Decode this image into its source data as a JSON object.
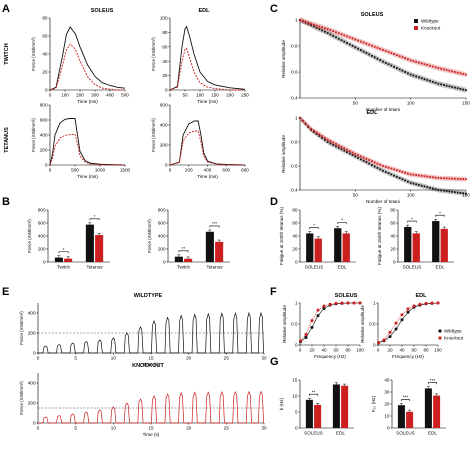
{
  "panel_letters": [
    "A",
    "B",
    "C",
    "D",
    "E",
    "F",
    "G"
  ],
  "colors": {
    "wildtype": "#111111",
    "knockout": "#cc1f1f",
    "threshold": "#888888"
  },
  "legend": {
    "wildtype": "Wildtype",
    "knockout": "Knockout"
  },
  "labels": {
    "soleus": "SOLEUS",
    "edl": "EDL",
    "twitch": "TWITCH",
    "tetanus": "TETANUS",
    "wildtype_caps": "WILDTYPE",
    "knockout_caps": "KNOCKOUT",
    "force_mn_mm2": "Force (mN/mm²)",
    "time_ms": "Time (ms)",
    "time_s": "Time (s)",
    "relative_amplitude": "Relative amplitude",
    "number_of_tetani": "Number of tetani",
    "frequency_hz": "Frequency (Hz)",
    "fatigue_100": "Fatigue at 100th tetanus (%)",
    "fatigue_150": "Fatigue at 150th tetanus (%)",
    "k_hz": "k (Hz)",
    "f50_hz": "F₅₀ (Hz)"
  },
  "chart_data": [
    {
      "id": "A-soleus-twitch",
      "type": "line",
      "ylabel": "Force (mN/mm²)",
      "xlabel": "Time (ms)",
      "xlim": [
        0,
        500
      ],
      "ylim": [
        0,
        80
      ],
      "xticks": [
        0,
        100,
        200,
        300,
        400,
        500
      ],
      "yticks": [
        0,
        20,
        40,
        60,
        80
      ],
      "series": [
        {
          "name": "Wildtype",
          "x": [
            0,
            40,
            80,
            110,
            135,
            170,
            200,
            250,
            300,
            350,
            400,
            450,
            500
          ],
          "y": [
            0,
            3,
            35,
            62,
            70,
            62,
            48,
            28,
            15,
            8,
            5,
            3,
            2
          ]
        },
        {
          "name": "Knockout",
          "x": [
            0,
            40,
            80,
            110,
            135,
            170,
            200,
            250,
            300,
            350,
            400,
            450,
            500
          ],
          "y": [
            0,
            2,
            25,
            45,
            51,
            45,
            32,
            15,
            6,
            2,
            1,
            0,
            0
          ]
        }
      ]
    },
    {
      "id": "A-edl-twitch",
      "type": "line",
      "ylabel": "Force (mN/mm²)",
      "xlabel": "Time (ms)",
      "xlim": [
        0,
        250
      ],
      "ylim": [
        0,
        100
      ],
      "xticks": [
        0,
        50,
        100,
        150,
        200,
        250
      ],
      "yticks": [
        0,
        20,
        40,
        60,
        80,
        100
      ],
      "series": [
        {
          "name": "Wildtype",
          "x": [
            0,
            25,
            40,
            50,
            55,
            65,
            80,
            100,
            125,
            150,
            200,
            250
          ],
          "y": [
            0,
            5,
            60,
            85,
            88,
            75,
            50,
            25,
            12,
            7,
            3,
            1
          ]
        },
        {
          "name": "Knockout",
          "x": [
            0,
            25,
            40,
            50,
            55,
            65,
            80,
            100,
            125,
            150,
            200,
            250
          ],
          "y": [
            0,
            4,
            40,
            56,
            58,
            45,
            25,
            10,
            4,
            2,
            0,
            0
          ]
        }
      ]
    },
    {
      "id": "A-soleus-tetanus",
      "type": "line",
      "ylabel": "Force (mN/mm²)",
      "xlabel": "Time (ms)",
      "xlim": [
        0,
        1500
      ],
      "ylim": [
        0,
        800
      ],
      "xticks": [
        0,
        500,
        1000,
        1500
      ],
      "yticks": [
        0,
        200,
        400,
        600,
        800
      ],
      "series": [
        {
          "name": "Wildtype",
          "x": [
            0,
            50,
            100,
            200,
            300,
            400,
            500,
            550,
            600,
            700,
            800,
            1000,
            1200,
            1500
          ],
          "y": [
            0,
            150,
            400,
            560,
            610,
            620,
            620,
            400,
            180,
            60,
            25,
            10,
            5,
            0
          ]
        },
        {
          "name": "Knockout",
          "x": [
            0,
            50,
            100,
            200,
            300,
            400,
            500,
            550,
            600,
            700,
            800,
            1000,
            1200,
            1500
          ],
          "y": [
            0,
            100,
            250,
            360,
            395,
            405,
            410,
            280,
            120,
            40,
            15,
            5,
            0,
            0
          ]
        }
      ]
    },
    {
      "id": "A-edl-tetanus",
      "type": "line",
      "ylabel": "Force (mN/mm²)",
      "xlabel": "Time (ms)",
      "xlim": [
        0,
        800
      ],
      "ylim": [
        0,
        600
      ],
      "xticks": [
        0,
        200,
        400,
        600,
        800
      ],
      "yticks": [
        0,
        200,
        400,
        600
      ],
      "series": [
        {
          "name": "Wildtype",
          "x": [
            0,
            100,
            140,
            200,
            260,
            300,
            330,
            360,
            400,
            500,
            600,
            800
          ],
          "y": [
            0,
            30,
            300,
            410,
            440,
            440,
            300,
            120,
            40,
            10,
            5,
            0
          ]
        },
        {
          "name": "Knockout",
          "x": [
            0,
            100,
            140,
            200,
            260,
            300,
            330,
            360,
            400,
            500,
            600,
            800
          ],
          "y": [
            0,
            25,
            240,
            320,
            340,
            340,
            230,
            90,
            30,
            8,
            3,
            0
          ]
        }
      ]
    },
    {
      "id": "B-soleus",
      "type": "bar",
      "ylabel": "Force (mN/mm²)",
      "categories": [
        "Twitch",
        "Tetanus"
      ],
      "ylim": [
        0,
        800
      ],
      "yticks": [
        0,
        200,
        400,
        600,
        800
      ],
      "series": [
        {
          "name": "Wildtype",
          "values": [
            68,
            575
          ]
        },
        {
          "name": "Knockout",
          "values": [
            52,
            415
          ]
        }
      ],
      "annotations": [
        "*",
        "*"
      ]
    },
    {
      "id": "B-edl",
      "type": "bar",
      "ylabel": "Force (mN/mm²)",
      "categories": [
        "Twitch",
        "Tetanus"
      ],
      "ylim": [
        0,
        800
      ],
      "yticks": [
        0,
        200,
        400,
        600,
        800
      ],
      "series": [
        {
          "name": "Wildtype",
          "values": [
            82,
            465
          ]
        },
        {
          "name": "Knockout",
          "values": [
            50,
            310
          ]
        }
      ],
      "annotations": [
        "**",
        "***"
      ]
    },
    {
      "id": "C-soleus",
      "type": "line",
      "ylabel": "Relative amplitude",
      "xlabel": "Number of tetani",
      "xlim": [
        0,
        150
      ],
      "ylim": [
        0.4,
        1.0
      ],
      "xticks": [
        50,
        100,
        150
      ],
      "yticks": [
        0.4,
        0.6,
        0.8,
        1.0
      ],
      "series": [
        {
          "name": "Wildtype",
          "x": [
            0,
            25,
            50,
            75,
            100,
            125,
            150
          ],
          "y": [
            1.0,
            0.9,
            0.79,
            0.68,
            0.58,
            0.51,
            0.46
          ]
        },
        {
          "name": "Knockout",
          "x": [
            0,
            25,
            50,
            75,
            100,
            125,
            150
          ],
          "y": [
            1.0,
            0.93,
            0.85,
            0.77,
            0.69,
            0.63,
            0.58
          ]
        }
      ]
    },
    {
      "id": "C-edl",
      "type": "line",
      "ylabel": "Relative amplitude",
      "xlabel": "Number of tetani",
      "xlim": [
        0,
        150
      ],
      "ylim": [
        0.4,
        1.0
      ],
      "xticks": [
        50,
        100,
        150
      ],
      "yticks": [
        0.4,
        0.6,
        0.8,
        1.0
      ],
      "series": [
        {
          "name": "Wildtype",
          "x": [
            0,
            10,
            25,
            50,
            75,
            100,
            125,
            150
          ],
          "y": [
            1.0,
            0.9,
            0.8,
            0.68,
            0.56,
            0.46,
            0.4,
            0.37
          ]
        },
        {
          "name": "Knockout",
          "x": [
            0,
            10,
            25,
            50,
            75,
            100,
            125,
            150
          ],
          "y": [
            1.0,
            0.91,
            0.82,
            0.7,
            0.6,
            0.53,
            0.5,
            0.49
          ]
        }
      ]
    },
    {
      "id": "D-100th",
      "type": "bar",
      "ylabel": "Fatigue at 100th tetanus (%)",
      "categories": [
        "SOLEUS",
        "EDL"
      ],
      "ylim": [
        0,
        80
      ],
      "yticks": [
        0,
        20,
        40,
        60,
        80
      ],
      "series": [
        {
          "name": "Wildtype",
          "values": [
            44,
            52
          ]
        },
        {
          "name": "Knockout",
          "values": [
            36,
            44
          ]
        }
      ],
      "annotations": [
        "*",
        "*"
      ]
    },
    {
      "id": "D-150th",
      "type": "bar",
      "ylabel": "Fatigue at 150th tetanus (%)",
      "categories": [
        "SOLEUS",
        "EDL"
      ],
      "ylim": [
        0,
        80
      ],
      "yticks": [
        0,
        20,
        40,
        60,
        80
      ],
      "series": [
        {
          "name": "Wildtype",
          "values": [
            54,
            63
          ]
        },
        {
          "name": "Knockout",
          "values": [
            44,
            51
          ]
        }
      ],
      "annotations": [
        "*",
        "*"
      ]
    },
    {
      "id": "E-wildtype",
      "type": "line",
      "ylabel": "Force (mN/mm²)",
      "xlabel": "Time (s)",
      "xlim": [
        0,
        30
      ],
      "ylim": [
        0,
        500
      ],
      "xticks": [
        0,
        5,
        10,
        15,
        20,
        25,
        30
      ],
      "yticks": [
        0,
        200,
        400
      ],
      "threshold": 200,
      "x": [
        1,
        2,
        3,
        4,
        5,
        6,
        7,
        8,
        9,
        10,
        11,
        12,
        13,
        14,
        15,
        16,
        17,
        18,
        19,
        20,
        21,
        22,
        23,
        24,
        25,
        26,
        27,
        28,
        29,
        30
      ],
      "peaks": [
        {
          "t": 1,
          "y": 70
        },
        {
          "t": 2.8,
          "y": 85
        },
        {
          "t": 4.6,
          "y": 100
        },
        {
          "t": 6.4,
          "y": 115
        },
        {
          "t": 8.2,
          "y": 130
        },
        {
          "t": 10,
          "y": 150
        },
        {
          "t": 11.8,
          "y": 200
        },
        {
          "t": 13.6,
          "y": 260
        },
        {
          "t": 15.4,
          "y": 320
        },
        {
          "t": 17.2,
          "y": 355
        },
        {
          "t": 19,
          "y": 375
        },
        {
          "t": 20.8,
          "y": 385
        },
        {
          "t": 22.6,
          "y": 392
        },
        {
          "t": 24.4,
          "y": 396
        },
        {
          "t": 26.2,
          "y": 398
        },
        {
          "t": 28,
          "y": 400
        },
        {
          "t": 29.6,
          "y": 400
        }
      ]
    },
    {
      "id": "E-knockout",
      "type": "line",
      "ylabel": "Force (mN/mm²)",
      "xlabel": "Time (s)",
      "xlim": [
        0,
        30
      ],
      "ylim": [
        0,
        500
      ],
      "xticks": [
        0,
        5,
        10,
        15,
        20,
        25,
        30
      ],
      "yticks": [
        0,
        200,
        400
      ],
      "threshold": 150,
      "peaks": [
        {
          "t": 1,
          "y": 60
        },
        {
          "t": 2.8,
          "y": 75
        },
        {
          "t": 4.6,
          "y": 90
        },
        {
          "t": 6.4,
          "y": 110
        },
        {
          "t": 8.2,
          "y": 130
        },
        {
          "t": 10,
          "y": 160
        },
        {
          "t": 11.8,
          "y": 200
        },
        {
          "t": 13.6,
          "y": 240
        },
        {
          "t": 15.4,
          "y": 270
        },
        {
          "t": 17.2,
          "y": 290
        },
        {
          "t": 19,
          "y": 300
        },
        {
          "t": 20.8,
          "y": 305
        },
        {
          "t": 22.6,
          "y": 308
        },
        {
          "t": 24.4,
          "y": 310
        },
        {
          "t": 26.2,
          "y": 312
        },
        {
          "t": 28,
          "y": 313
        },
        {
          "t": 29.6,
          "y": 314
        }
      ]
    },
    {
      "id": "F-soleus",
      "type": "scatter",
      "ylabel": "Relative amplitude",
      "xlabel": "Frequency (Hz)",
      "xlim": [
        0,
        100
      ],
      "ylim": [
        0,
        1.0
      ],
      "xticks": [
        0,
        20,
        40,
        60,
        80,
        100
      ],
      "yticks": [
        0.0,
        0.5,
        1.0
      ],
      "series": [
        {
          "name": "Wildtype",
          "x": [
            1,
            10,
            20,
            30,
            40,
            50,
            60,
            70,
            80,
            90,
            100
          ],
          "y": [
            0.08,
            0.18,
            0.42,
            0.7,
            0.87,
            0.95,
            0.98,
            0.99,
            1.0,
            1.0,
            1.0
          ]
        },
        {
          "name": "Knockout",
          "x": [
            1,
            10,
            20,
            30,
            40,
            50,
            60,
            70,
            80,
            90,
            100
          ],
          "y": [
            0.1,
            0.25,
            0.58,
            0.83,
            0.93,
            0.97,
            0.99,
            1.0,
            1.0,
            1.0,
            1.0
          ]
        }
      ]
    },
    {
      "id": "F-edl",
      "type": "scatter",
      "ylabel": "Relative amplitude",
      "xlabel": "Frequency (Hz)",
      "xlim": [
        0,
        100
      ],
      "ylim": [
        0,
        1.0
      ],
      "xticks": [
        0,
        20,
        40,
        60,
        80,
        100
      ],
      "yticks": [
        0.0,
        0.5,
        1.0
      ],
      "series": [
        {
          "name": "Wildtype",
          "x": [
            1,
            10,
            20,
            30,
            40,
            50,
            60,
            70,
            80,
            90,
            100
          ],
          "y": [
            0.05,
            0.1,
            0.2,
            0.38,
            0.6,
            0.78,
            0.9,
            0.95,
            0.98,
            0.99,
            1.0
          ]
        },
        {
          "name": "Knockout",
          "x": [
            1,
            10,
            20,
            30,
            40,
            50,
            60,
            70,
            80,
            90,
            100
          ],
          "y": [
            0.06,
            0.12,
            0.3,
            0.52,
            0.72,
            0.86,
            0.93,
            0.97,
            0.99,
            1.0,
            1.0
          ]
        }
      ]
    },
    {
      "id": "G-k",
      "type": "bar",
      "ylabel": "k (Hz)",
      "categories": [
        "SOLEUS",
        "EDL"
      ],
      "ylim": [
        0,
        15
      ],
      "yticks": [
        0,
        5,
        10,
        15
      ],
      "series": [
        {
          "name": "Wildtype",
          "values": [
            8.8,
            13.6
          ]
        },
        {
          "name": "Knockout",
          "values": [
            7.2,
            13.2
          ]
        }
      ],
      "annotations": [
        "**"
      ]
    },
    {
      "id": "G-f50",
      "type": "bar",
      "ylabel": "F₅₀ (Hz)",
      "categories": [
        "SOLEUS",
        "EDL"
      ],
      "ylim": [
        0,
        40
      ],
      "yticks": [
        0,
        10,
        20,
        30,
        40
      ],
      "series": [
        {
          "name": "Wildtype",
          "values": [
            19,
            33
          ]
        },
        {
          "name": "Knockout",
          "values": [
            13.5,
            27
          ]
        }
      ],
      "annotations": [
        "***",
        "***"
      ]
    }
  ]
}
